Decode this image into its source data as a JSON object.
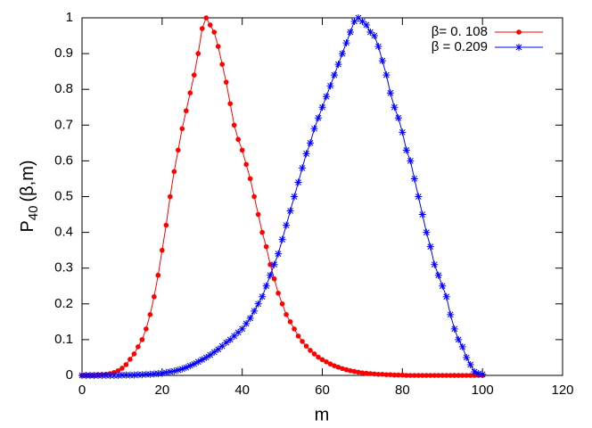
{
  "chart_data": {
    "type": "line",
    "y_label": [
      "P",
      "40",
      "(β,m)"
    ],
    "x_label": "m",
    "xlim": [
      0,
      120
    ],
    "xticks": [
      0,
      20,
      40,
      60,
      80,
      100,
      120
    ],
    "ylim": [
      0,
      1
    ],
    "yticks": [
      0,
      0.1,
      0.2,
      0.3,
      0.4,
      0.5,
      0.6,
      0.7,
      0.8,
      0.9,
      1
    ],
    "legend": "top-right",
    "x": [
      0,
      1,
      2,
      3,
      4,
      5,
      6,
      7,
      8,
      9,
      10,
      11,
      12,
      13,
      14,
      15,
      16,
      17,
      18,
      19,
      20,
      21,
      22,
      23,
      24,
      25,
      26,
      27,
      28,
      29,
      30,
      31,
      32,
      33,
      34,
      35,
      36,
      37,
      38,
      39,
      40,
      41,
      42,
      43,
      44,
      45,
      46,
      47,
      48,
      49,
      50,
      51,
      52,
      53,
      54,
      55,
      56,
      57,
      58,
      59,
      60,
      61,
      62,
      63,
      64,
      65,
      66,
      67,
      68,
      69,
      70,
      71,
      72,
      73,
      74,
      75,
      76,
      77,
      78,
      79,
      80,
      81,
      82,
      83,
      84,
      85,
      86,
      87,
      88,
      89,
      90,
      91,
      92,
      93,
      94,
      95,
      96,
      97,
      98,
      99,
      100
    ],
    "series": [
      {
        "name": "β= 0. 108",
        "color": "#ff0000",
        "marker": "circle",
        "values": [
          0,
          0,
          0,
          0,
          0.001,
          0.002,
          0.003,
          0.005,
          0.008,
          0.013,
          0.02,
          0.03,
          0.045,
          0.06,
          0.08,
          0.1,
          0.13,
          0.17,
          0.22,
          0.28,
          0.35,
          0.42,
          0.5,
          0.57,
          0.63,
          0.69,
          0.74,
          0.79,
          0.84,
          0.9,
          0.97,
          1.0,
          0.98,
          0.96,
          0.92,
          0.87,
          0.82,
          0.76,
          0.7,
          0.66,
          0.63,
          0.59,
          0.55,
          0.5,
          0.45,
          0.4,
          0.36,
          0.31,
          0.27,
          0.23,
          0.2,
          0.17,
          0.15,
          0.13,
          0.11,
          0.095,
          0.082,
          0.07,
          0.06,
          0.051,
          0.044,
          0.038,
          0.032,
          0.027,
          0.023,
          0.019,
          0.016,
          0.013,
          0.011,
          0.009,
          0.007,
          0.006,
          0.005,
          0.004,
          0.003,
          0.003,
          0.002,
          0.002,
          0.001,
          0.001,
          0.001,
          0,
          0,
          0,
          0,
          0,
          0,
          0,
          0,
          0,
          0,
          0,
          0,
          0,
          0,
          0,
          0,
          0,
          0,
          0,
          0
        ]
      },
      {
        "name": "β = 0.209",
        "color": "#0000ff",
        "marker": "star",
        "values": [
          0,
          0,
          0,
          0,
          0,
          0,
          0,
          0,
          0,
          0,
          0.001,
          0.001,
          0.001,
          0.001,
          0.002,
          0.002,
          0.003,
          0.003,
          0.004,
          0.005,
          0.006,
          0.008,
          0.01,
          0.012,
          0.015,
          0.018,
          0.022,
          0.027,
          0.032,
          0.038,
          0.044,
          0.05,
          0.057,
          0.065,
          0.073,
          0.082,
          0.092,
          0.1,
          0.11,
          0.12,
          0.13,
          0.145,
          0.16,
          0.18,
          0.2,
          0.22,
          0.25,
          0.28,
          0.31,
          0.34,
          0.38,
          0.42,
          0.46,
          0.5,
          0.54,
          0.58,
          0.62,
          0.65,
          0.69,
          0.72,
          0.75,
          0.78,
          0.81,
          0.84,
          0.87,
          0.9,
          0.93,
          0.96,
          0.99,
          1.0,
          0.99,
          0.98,
          0.96,
          0.95,
          0.92,
          0.88,
          0.84,
          0.79,
          0.75,
          0.72,
          0.68,
          0.63,
          0.6,
          0.55,
          0.5,
          0.45,
          0.4,
          0.36,
          0.31,
          0.28,
          0.25,
          0.22,
          0.17,
          0.13,
          0.1,
          0.08,
          0.05,
          0.03,
          0.01,
          0.005,
          0.003
        ]
      }
    ]
  }
}
